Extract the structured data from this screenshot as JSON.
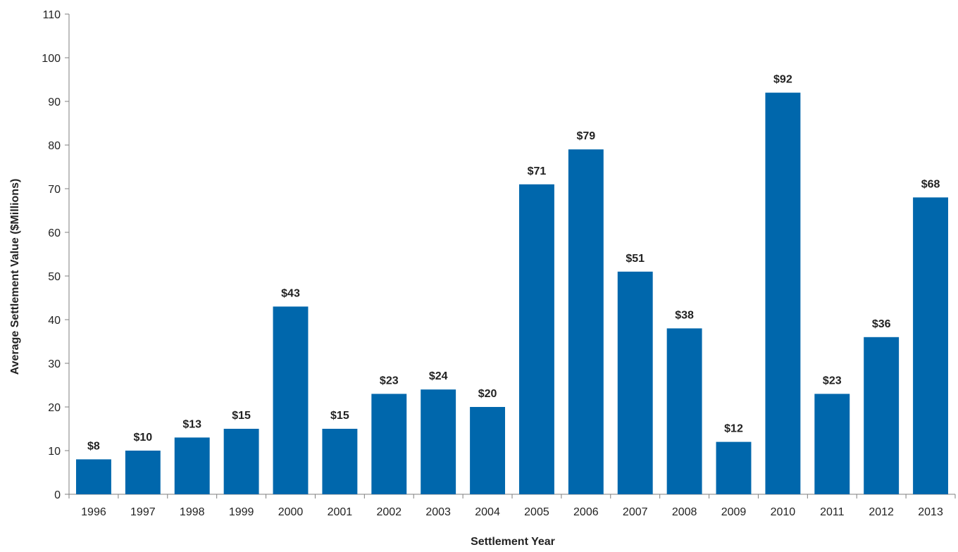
{
  "chart_data": {
    "type": "bar",
    "title": "",
    "xlabel": "Settlement Year",
    "ylabel": "Average Settlement Value ($Millions)",
    "ylim": [
      0,
      110
    ],
    "yticks": [
      0,
      10,
      20,
      30,
      40,
      50,
      60,
      70,
      80,
      90,
      100,
      110
    ],
    "categories": [
      "1996",
      "1997",
      "1998",
      "1999",
      "2000",
      "2001",
      "2002",
      "2003",
      "2004",
      "2005",
      "2006",
      "2007",
      "2008",
      "2009",
      "2010",
      "2011",
      "2012",
      "2013"
    ],
    "values": [
      8,
      10,
      13,
      15,
      43,
      15,
      23,
      24,
      20,
      71,
      79,
      51,
      38,
      12,
      92,
      23,
      36,
      68
    ],
    "data_labels": [
      "$8",
      "$10",
      "$13",
      "$15",
      "$43",
      "$15",
      "$23",
      "$24",
      "$20",
      "$71",
      "$79",
      "$51",
      "$38",
      "$12",
      "$92",
      "$23",
      "$36",
      "$68"
    ],
    "grid": false,
    "legend": "none",
    "colors": {
      "bar": "#0067AC",
      "axis": "#7F7F7F",
      "text": "#222222"
    }
  }
}
